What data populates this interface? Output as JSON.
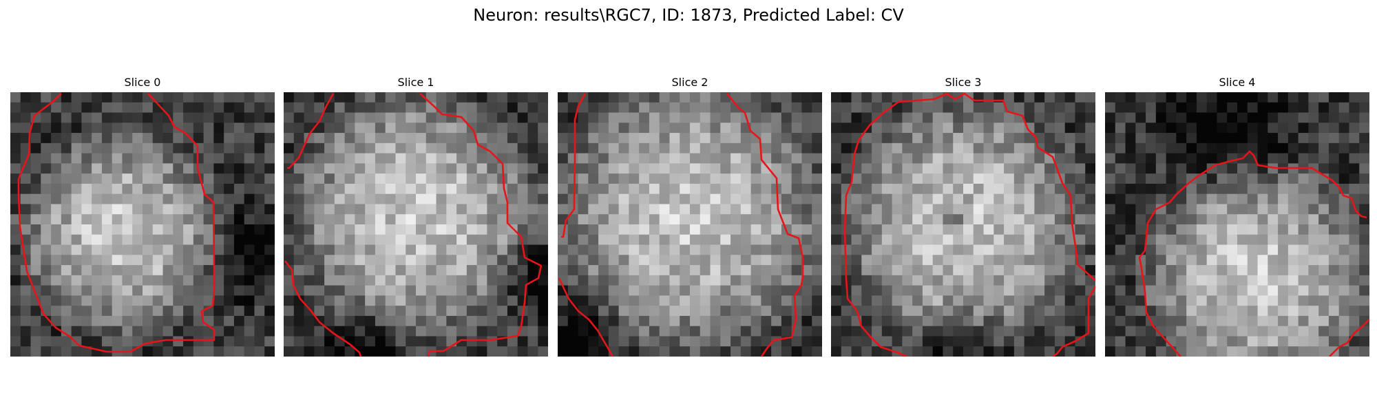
{
  "figure": {
    "title": "Neuron: results\\RGC7, ID: 1873, Predicted Label: CV"
  },
  "colors": {
    "contour": "#e8141a",
    "colormap": "gray"
  },
  "slices": [
    {
      "title": "Slice 0"
    },
    {
      "title": "Slice 1"
    },
    {
      "title": "Slice 2"
    },
    {
      "title": "Slice 3"
    },
    {
      "title": "Slice 4"
    }
  ]
}
